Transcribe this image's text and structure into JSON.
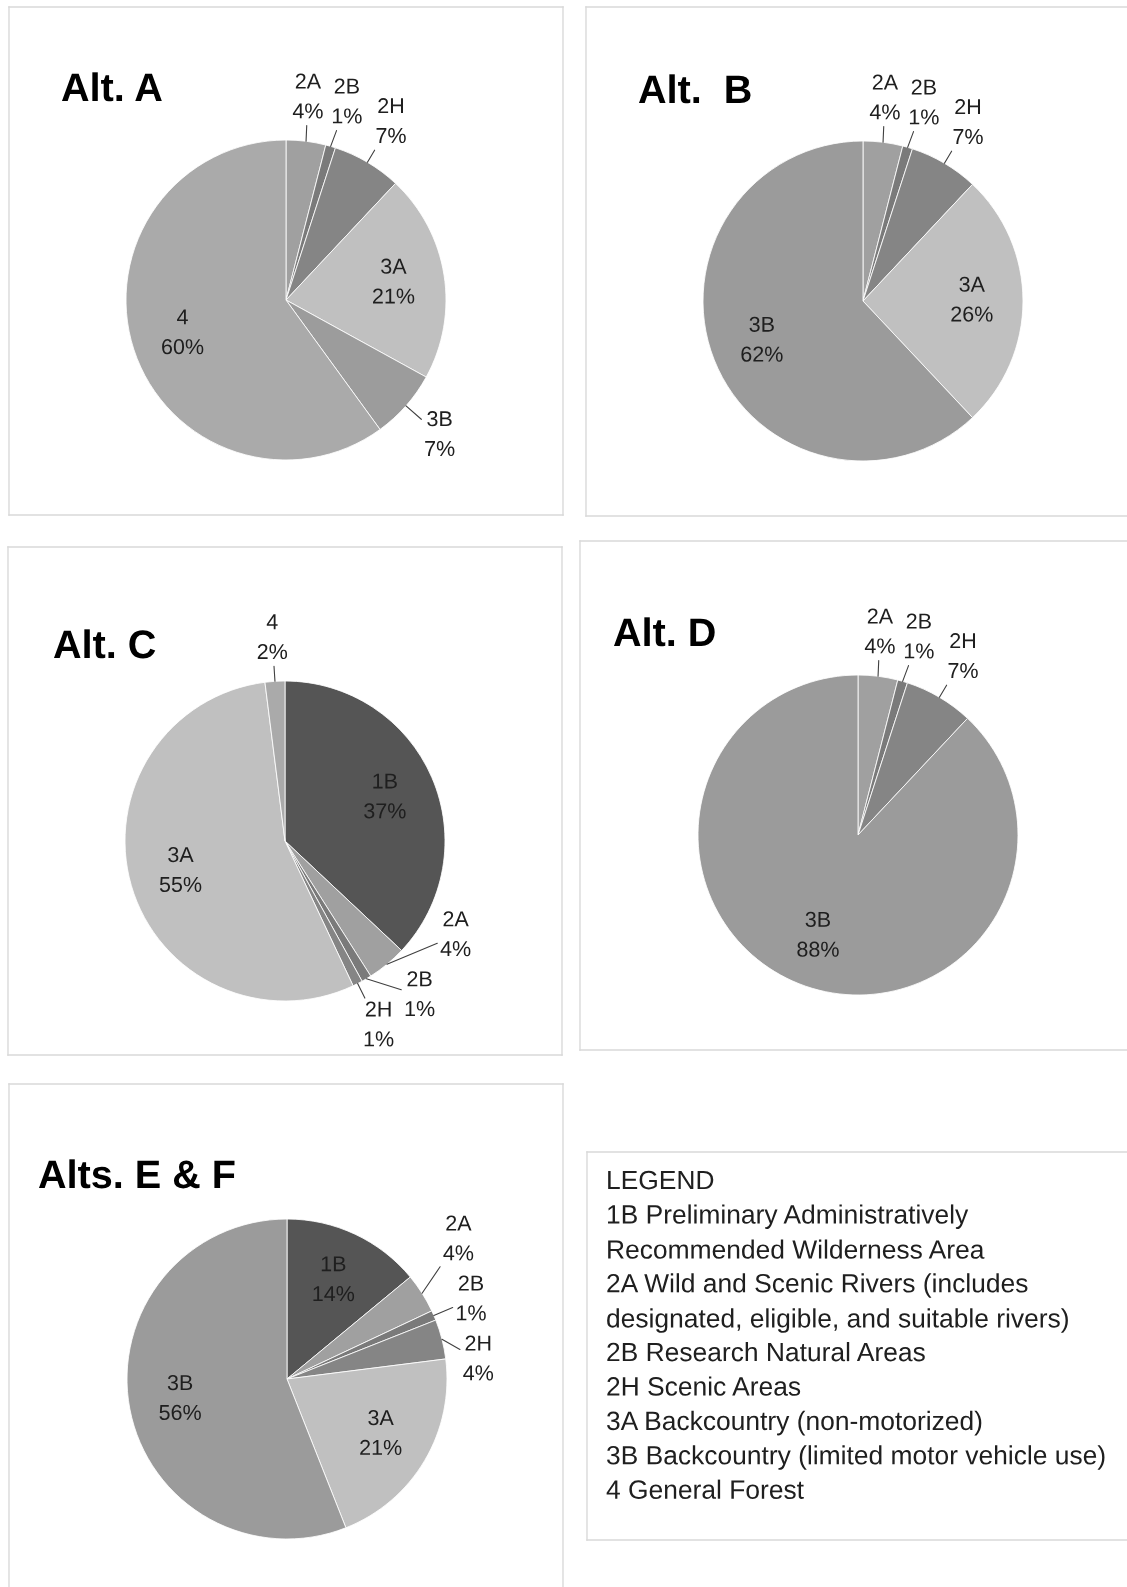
{
  "chart_data": [
    {
      "type": "pie",
      "title": "Alt. A",
      "categories": [
        "2A",
        "2B",
        "2H",
        "3A",
        "3B",
        "4"
      ],
      "values": [
        4,
        1,
        7,
        21,
        7,
        60
      ],
      "value_labels": [
        "4%",
        "1%",
        "7%",
        "21%",
        "7%",
        "60%"
      ],
      "colors": [
        "#a0a0a0",
        "#7a7a7a",
        "#858585",
        "#c0c0c0",
        "#9c9c9c",
        "#aaaaaa"
      ]
    },
    {
      "type": "pie",
      "title": "Alt.  B",
      "categories": [
        "2A",
        "2B",
        "2H",
        "3A",
        "3B"
      ],
      "values": [
        4,
        1,
        7,
        26,
        62
      ],
      "value_labels": [
        "4%",
        "1%",
        "7%",
        "26%",
        "62%"
      ],
      "colors": [
        "#a0a0a0",
        "#7a7a7a",
        "#858585",
        "#c0c0c0",
        "#9b9b9b"
      ]
    },
    {
      "type": "pie",
      "title": "Alt. C",
      "categories": [
        "1B",
        "2A",
        "2B",
        "2H",
        "3A",
        "4"
      ],
      "values": [
        37,
        4,
        1,
        1,
        55,
        2
      ],
      "value_labels": [
        "37%",
        "4%",
        "1%",
        "1%",
        "55%",
        "2%"
      ],
      "colors": [
        "#555555",
        "#a0a0a0",
        "#7a7a7a",
        "#858585",
        "#c0c0c0",
        "#aaaaaa"
      ]
    },
    {
      "type": "pie",
      "title": "Alt. D",
      "categories": [
        "2A",
        "2B",
        "2H",
        "3B"
      ],
      "values": [
        4,
        1,
        7,
        88
      ],
      "value_labels": [
        "4%",
        "1%",
        "7%",
        "88%"
      ],
      "colors": [
        "#a0a0a0",
        "#7a7a7a",
        "#858585",
        "#9b9b9b"
      ]
    },
    {
      "type": "pie",
      "title": "Alts. E & F",
      "categories": [
        "1B",
        "2A",
        "2B",
        "2H",
        "3A",
        "3B"
      ],
      "values": [
        14,
        4,
        1,
        4,
        21,
        56
      ],
      "value_labels": [
        "14%",
        "4%",
        "1%",
        "4%",
        "21%",
        "56%"
      ],
      "colors": [
        "#555555",
        "#a0a0a0",
        "#7a7a7a",
        "#858585",
        "#c0c0c0",
        "#9b9b9b"
      ]
    },
    {
      "type": "other",
      "title": "LEGEND",
      "annotations": [
        "1B Preliminary Administratively Recommended Wilderness Area",
        "2A Wild and Scenic Rivers (includes designated, eligible, and suitable rivers)",
        "2B Research Natural Areas",
        "2H Scenic Areas",
        "3A Backcountry (non-motorized)",
        "3B Backcountry (limited motor vehicle use)",
        "4 General Forest"
      ]
    }
  ]
}
